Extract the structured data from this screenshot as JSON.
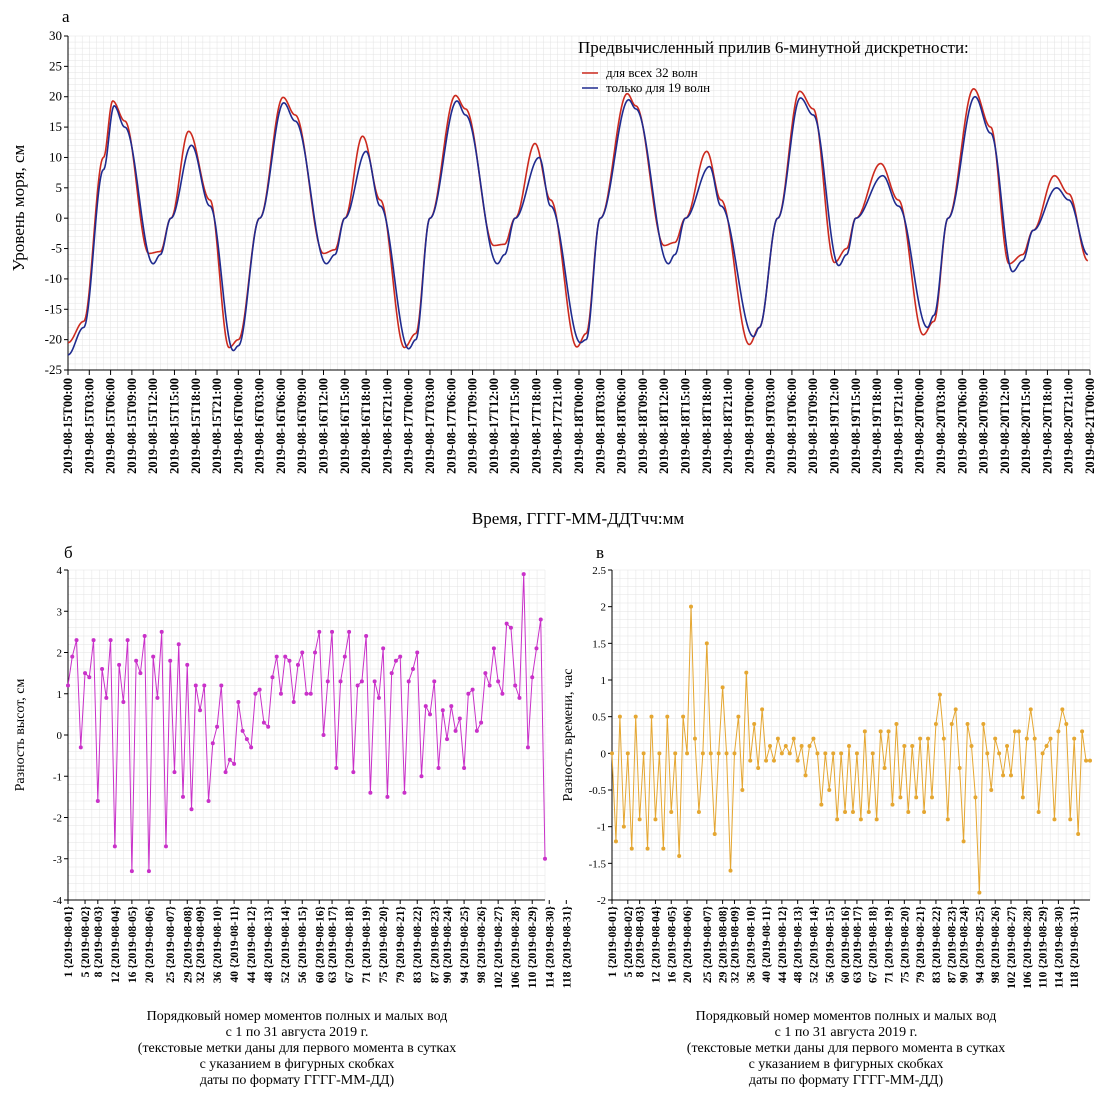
{
  "chart_data": [
    {
      "id": "a",
      "type": "line",
      "panel_label": "а",
      "ylabel": "Уровень моря, см",
      "xlabel": "Время, ГГГГ-ММ-ДДТчч:мм",
      "legend_title": "Предвычисленный прилив 6-минутной дискретности:",
      "ylim": [
        -25,
        30
      ],
      "yticks": [
        -25,
        -20,
        -15,
        -10,
        -5,
        0,
        5,
        10,
        15,
        20,
        25,
        30
      ],
      "xlim_hours": [
        0,
        144
      ],
      "x_tick_labels": [
        "2019-08-15T00:00",
        "2019-08-15T03:00",
        "2019-08-15T06:00",
        "2019-08-15T09:00",
        "2019-08-15T12:00",
        "2019-08-15T15:00",
        "2019-08-15T18:00",
        "2019-08-15T21:00",
        "2019-08-16T00:00",
        "2019-08-16T03:00",
        "2019-08-16T06:00",
        "2019-08-16T09:00",
        "2019-08-16T12:00",
        "2019-08-16T15:00",
        "2019-08-16T18:00",
        "2019-08-16T21:00",
        "2019-08-17T00:00",
        "2019-08-17T03:00",
        "2019-08-17T06:00",
        "2019-08-17T09:00",
        "2019-08-17T12:00",
        "2019-08-17T15:00",
        "2019-08-17T18:00",
        "2019-08-17T21:00",
        "2019-08-18T00:00",
        "2019-08-18T03:00",
        "2019-08-18T06:00",
        "2019-08-18T09:00",
        "2019-08-18T12:00",
        "2019-08-18T15:00",
        "2019-08-18T18:00",
        "2019-08-18T21:00",
        "2019-08-19T00:00",
        "2019-08-19T03:00",
        "2019-08-19T06:00",
        "2019-08-19T09:00",
        "2019-08-19T12:00",
        "2019-08-19T15:00",
        "2019-08-19T18:00",
        "2019-08-19T21:00",
        "2019-08-20T00:00",
        "2019-08-20T03:00",
        "2019-08-20T06:00",
        "2019-08-20T09:00",
        "2019-08-20T12:00",
        "2019-08-20T15:00",
        "2019-08-20T18:00",
        "2019-08-20T21:00",
        "2019-08-21T00:00"
      ],
      "series": [
        {
          "name": "для всех 32 волн",
          "color": "#cc2a1e",
          "points": [
            [
              0,
              -20.5
            ],
            [
              2.2,
              -17
            ],
            [
              5,
              10
            ],
            [
              6.3,
              19.3
            ],
            [
              8,
              16
            ],
            [
              11.4,
              -5.8
            ],
            [
              13,
              -5.5
            ],
            [
              14.5,
              0
            ],
            [
              17,
              14.3
            ],
            [
              20,
              3
            ],
            [
              22.7,
              -21.3
            ],
            [
              24,
              -20
            ],
            [
              27,
              0
            ],
            [
              30.3,
              19.9
            ],
            [
              32,
              17
            ],
            [
              36,
              -5.8
            ],
            [
              37.6,
              -5.2
            ],
            [
              39,
              0
            ],
            [
              41.5,
              13.5
            ],
            [
              44,
              3
            ],
            [
              47.4,
              -21.3
            ],
            [
              49,
              -19
            ],
            [
              51,
              0
            ],
            [
              54.6,
              20.2
            ],
            [
              56,
              18
            ],
            [
              60,
              -4.5
            ],
            [
              61.5,
              -4.3
            ],
            [
              63,
              0
            ],
            [
              65.8,
              12.3
            ],
            [
              68,
              3
            ],
            [
              71.7,
              -21.2
            ],
            [
              73,
              -19
            ],
            [
              75,
              0
            ],
            [
              78.8,
              20.5
            ],
            [
              80,
              18.5
            ],
            [
              84,
              -4.5
            ],
            [
              85.5,
              -4
            ],
            [
              87,
              0
            ],
            [
              90,
              11
            ],
            [
              92,
              3
            ],
            [
              96,
              -20.8
            ],
            [
              97.4,
              -18
            ],
            [
              100,
              0
            ],
            [
              103.1,
              20.9
            ],
            [
              105,
              18
            ],
            [
              108,
              -7.3
            ],
            [
              109.7,
              -5
            ],
            [
              111,
              0
            ],
            [
              114.5,
              9
            ],
            [
              117,
              3
            ],
            [
              120.5,
              -19.2
            ],
            [
              122,
              -17
            ],
            [
              124,
              0
            ],
            [
              127.6,
              21.3
            ],
            [
              130,
              15
            ],
            [
              132.6,
              -7.5
            ],
            [
              134.5,
              -6
            ],
            [
              136,
              -2
            ],
            [
              139,
              7
            ],
            [
              141,
              4
            ],
            [
              143.7,
              -7
            ]
          ]
        },
        {
          "name": "только для 19 волн",
          "color": "#1f2b8f",
          "points": [
            [
              0,
              -22.5
            ],
            [
              2.2,
              -18
            ],
            [
              5,
              8
            ],
            [
              6.5,
              18.5
            ],
            [
              8,
              15
            ],
            [
              12,
              -7.5
            ],
            [
              13,
              -6
            ],
            [
              14.5,
              0
            ],
            [
              17.4,
              12
            ],
            [
              20,
              2
            ],
            [
              23.3,
              -21.8
            ],
            [
              24,
              -21
            ],
            [
              27,
              0
            ],
            [
              30.4,
              19
            ],
            [
              32,
              16
            ],
            [
              36.4,
              -7.5
            ],
            [
              37.6,
              -6
            ],
            [
              39,
              0
            ],
            [
              42,
              11
            ],
            [
              44,
              2
            ],
            [
              48,
              -21.5
            ],
            [
              49,
              -20
            ],
            [
              51,
              0
            ],
            [
              54.8,
              19.3
            ],
            [
              56,
              17
            ],
            [
              60.5,
              -7.5
            ],
            [
              61.5,
              -6
            ],
            [
              63,
              0
            ],
            [
              66.4,
              10
            ],
            [
              68,
              2
            ],
            [
              72.2,
              -20.5
            ],
            [
              73,
              -20
            ],
            [
              75,
              0
            ],
            [
              79,
              19.5
            ],
            [
              80,
              18
            ],
            [
              84.6,
              -7.5
            ],
            [
              85.5,
              -6
            ],
            [
              87,
              0
            ],
            [
              90.4,
              8.5
            ],
            [
              92,
              2
            ],
            [
              96.6,
              -19.5
            ],
            [
              97.4,
              -18
            ],
            [
              100,
              0
            ],
            [
              103.2,
              19.8
            ],
            [
              105,
              17
            ],
            [
              108.6,
              -7.8
            ],
            [
              109.7,
              -6
            ],
            [
              111,
              0
            ],
            [
              114.8,
              7
            ],
            [
              117,
              2
            ],
            [
              121.1,
              -18
            ],
            [
              122,
              -16
            ],
            [
              124,
              0
            ],
            [
              127.8,
              20
            ],
            [
              130,
              14
            ],
            [
              133.1,
              -8.8
            ],
            [
              134.5,
              -7
            ],
            [
              136,
              -2
            ],
            [
              139.3,
              5
            ],
            [
              141,
              3
            ],
            [
              143.7,
              -6
            ]
          ]
        }
      ]
    },
    {
      "id": "b",
      "type": "line",
      "panel_label": "б",
      "ylabel": "Разность высот, см",
      "color": "#c931c9",
      "ylim": [
        -4,
        4
      ],
      "yticks": [
        -4,
        -3,
        -2,
        -1,
        0,
        1,
        2,
        3,
        4
      ],
      "x_tick_labels": [
        "1 {2019-08-01}",
        "5 {2019-08-02}",
        "8 {2019-08-03}",
        "12 {2019-08-04}",
        "16 {2019-08-05}",
        "20 {2019-08-06}",
        "25 {2019-08-07}",
        "29 {2019-08-08}",
        "32 {2019-08-09}",
        "36 {2019-08-10}",
        "40 {2019-08-11}",
        "44 {2019-08-12}",
        "48 {2019-08-13}",
        "52 {2019-08-14}",
        "56 {2019-08-15}",
        "60 {2019-08-16}",
        "63 {2019-08-17}",
        "67 {2019-08-18}",
        "71 {2019-08-19}",
        "75 {2019-08-20}",
        "79 {2019-08-21}",
        "83 {2019-08-22}",
        "87 {2019-08-23}",
        "90 {2019-08-24}",
        "94 {2019-08-25}",
        "98 {2019-08-26}",
        "102 {2019-08-27}",
        "106 {2019-08-28}",
        "110 {2019-08-29}",
        "114 {2019-08-30}",
        "118 {2019-08-31}"
      ],
      "xlabel_lines": [
        "Порядковый номер моментов полных и малых вод",
        "с 1 по 31 августа 2019 г.",
        "(текстовые метки даны для первого момента в сутках",
        "с указанием в фигурных скобках",
        "даты по формату ГГГГ-ММ-ДД)"
      ],
      "values": [
        1.2,
        1.9,
        2.3,
        -0.3,
        1.5,
        1.4,
        2.3,
        -1.6,
        1.6,
        0.9,
        2.3,
        -2.7,
        1.7,
        0.8,
        2.3,
        -3.3,
        1.8,
        1.5,
        2.4,
        -3.3,
        1.9,
        0.9,
        2.5,
        -2.7,
        1.8,
        -0.9,
        2.2,
        -1.5,
        1.7,
        -1.8,
        1.2,
        0.6,
        1.2,
        -1.6,
        -0.2,
        0.2,
        1.2,
        -0.9,
        -0.6,
        -0.7,
        0.8,
        0.1,
        -0.1,
        -0.3,
        1,
        1.1,
        0.3,
        0.2,
        1.4,
        1.9,
        1,
        1.9,
        1.8,
        0.8,
        1.7,
        2,
        1,
        1,
        2,
        2.5,
        0,
        1.3,
        2.5,
        -0.8,
        1.3,
        1.9,
        2.5,
        -0.9,
        1.2,
        1.3,
        2.4,
        -1.4,
        1.3,
        0.9,
        2.1,
        -1.5,
        1.5,
        1.8,
        1.9,
        -1.4,
        1.3,
        1.6,
        2,
        -1,
        0.7,
        0.5,
        1.3,
        -0.8,
        0.6,
        -0.1,
        0.7,
        0.1,
        0.4,
        -0.8,
        1,
        1.1,
        0.1,
        0.3,
        1.5,
        1.2,
        2.1,
        1.3,
        1,
        2.7,
        2.6,
        1.2,
        0.9,
        3.9,
        -0.3,
        1.4,
        2.1,
        2.8,
        -3
      ]
    },
    {
      "id": "c",
      "type": "line",
      "panel_label": "в",
      "ylabel": "Разность времени, час",
      "color": "#e5a732",
      "ylim": [
        -2,
        2.5
      ],
      "yticks": [
        -2,
        -1.5,
        -1,
        -0.5,
        0,
        0.5,
        1,
        1.5,
        2,
        2.5
      ],
      "x_tick_labels": [
        "1 {2019-08-01}",
        "5 {2019-08-02}",
        "8 {2019-08-03}",
        "12 {2019-08-04}",
        "16 {2019-08-05}",
        "20 {2019-08-06}",
        "25 {2019-08-07}",
        "29 {2019-08-08}",
        "32 {2019-08-09}",
        "36 {2019-08-10}",
        "40 {2019-08-11}",
        "44 {2019-08-12}",
        "48 {2019-08-13}",
        "52 {2019-08-14}",
        "56 {2019-08-15}",
        "60 {2019-08-16}",
        "63 {2019-08-17}",
        "67 {2019-08-18}",
        "71 {2019-08-19}",
        "75 {2019-08-20}",
        "79 {2019-08-21}",
        "83 {2019-08-22}",
        "87 {2019-08-23}",
        "90 {2019-08-24}",
        "94 {2019-08-25}",
        "98 {2019-08-26}",
        "102 {2019-08-27}",
        "106 {2019-08-28}",
        "110 {2019-08-29}",
        "114 {2019-08-30}",
        "118 {2019-08-31}"
      ],
      "xlabel_lines": [
        "Порядковый номер моментов полных и малых вод",
        "с 1 по 31 августа 2019 г.",
        "(текстовые метки даны для первого момента в сутках",
        "с указанием в фигурных скобках",
        "даты по формату ГГГГ-ММ-ДД)"
      ],
      "values": [
        0,
        -1.2,
        0.5,
        -1,
        0,
        -1.3,
        0.5,
        -0.9,
        0,
        -1.3,
        0.5,
        -0.9,
        0,
        -1.3,
        0.5,
        -0.8,
        0,
        -1.4,
        0.5,
        0,
        2,
        0.2,
        -0.8,
        0,
        1.5,
        0,
        -1.1,
        0,
        0.9,
        0,
        -1.6,
        0,
        0.5,
        -0.5,
        1.1,
        -0.1,
        0.4,
        -0.2,
        0.6,
        -0.1,
        0.1,
        -0.1,
        0.2,
        0,
        0.1,
        0,
        0.2,
        -0.1,
        0.1,
        -0.3,
        0.1,
        0.2,
        0,
        -0.7,
        0,
        -0.5,
        0,
        -0.9,
        0,
        -0.8,
        0.1,
        -0.8,
        0,
        -0.9,
        0.3,
        -0.8,
        0,
        -0.9,
        0.3,
        -0.2,
        0.3,
        -0.7,
        0.4,
        -0.6,
        0.1,
        -0.8,
        0.1,
        -0.6,
        0.2,
        -0.8,
        0.2,
        -0.6,
        0.4,
        0.8,
        0.2,
        -0.9,
        0.4,
        0.6,
        -0.2,
        -1.2,
        0.4,
        0.1,
        -0.6,
        -1.9,
        0.4,
        0,
        -0.5,
        0.2,
        0,
        -0.3,
        0.1,
        -0.3,
        0.3,
        0.3,
        -0.6,
        0.2,
        0.6,
        0.2,
        -0.8,
        0,
        0.1,
        0.2,
        -0.9,
        0.3,
        0.6,
        0.4,
        -0.9,
        0.2,
        -1.1,
        0.3,
        -0.1,
        -0.1
      ]
    }
  ]
}
